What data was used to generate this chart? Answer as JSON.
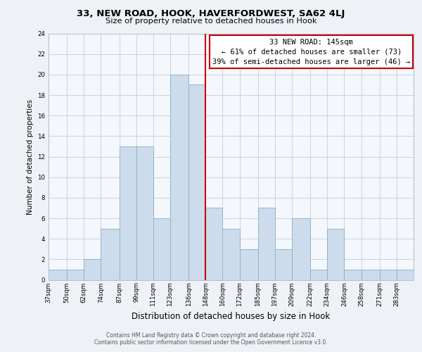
{
  "title1": "33, NEW ROAD, HOOK, HAVERFORDWEST, SA62 4LJ",
  "title2": "Size of property relative to detached houses in Hook",
  "xlabel": "Distribution of detached houses by size in Hook",
  "ylabel": "Number of detached properties",
  "bar_labels": [
    "37sqm",
    "50sqm",
    "62sqm",
    "74sqm",
    "87sqm",
    "99sqm",
    "111sqm",
    "123sqm",
    "136sqm",
    "148sqm",
    "160sqm",
    "172sqm",
    "185sqm",
    "197sqm",
    "209sqm",
    "222sqm",
    "234sqm",
    "246sqm",
    "258sqm",
    "271sqm",
    "283sqm"
  ],
  "bar_heights": [
    1,
    1,
    2,
    5,
    13,
    13,
    6,
    20,
    19,
    7,
    5,
    3,
    7,
    3,
    6,
    1,
    5,
    1,
    1,
    1,
    1
  ],
  "bin_edges": [
    37,
    50,
    62,
    74,
    87,
    99,
    111,
    123,
    136,
    148,
    160,
    172,
    185,
    197,
    209,
    222,
    234,
    246,
    258,
    271,
    283,
    295
  ],
  "bar_color": "#ccdcec",
  "bar_edgecolor": "#8bacc8",
  "vline_x": 148,
  "vline_color": "#cc0000",
  "annotation_title": "33 NEW ROAD: 145sqm",
  "annotation_line1": "← 61% of detached houses are smaller (73)",
  "annotation_line2": "39% of semi-detached houses are larger (46) →",
  "annotation_box_edgecolor": "#cc0000",
  "annotation_box_facecolor": "#ffffff",
  "ylim": [
    0,
    24
  ],
  "yticks": [
    0,
    2,
    4,
    6,
    8,
    10,
    12,
    14,
    16,
    18,
    20,
    22,
    24
  ],
  "footer1": "Contains HM Land Registry data © Crown copyright and database right 2024.",
  "footer2": "Contains public sector information licensed under the Open Government Licence v3.0.",
  "bg_color": "#eef2f7",
  "plot_bg_color": "#f4f7fb",
  "grid_color": "#c8d4e0",
  "title1_fontsize": 9.5,
  "title2_fontsize": 8.2,
  "xlabel_fontsize": 8.5,
  "ylabel_fontsize": 7.5,
  "tick_fontsize": 6.2,
  "ann_fontsize": 7.5,
  "footer_fontsize": 5.5
}
